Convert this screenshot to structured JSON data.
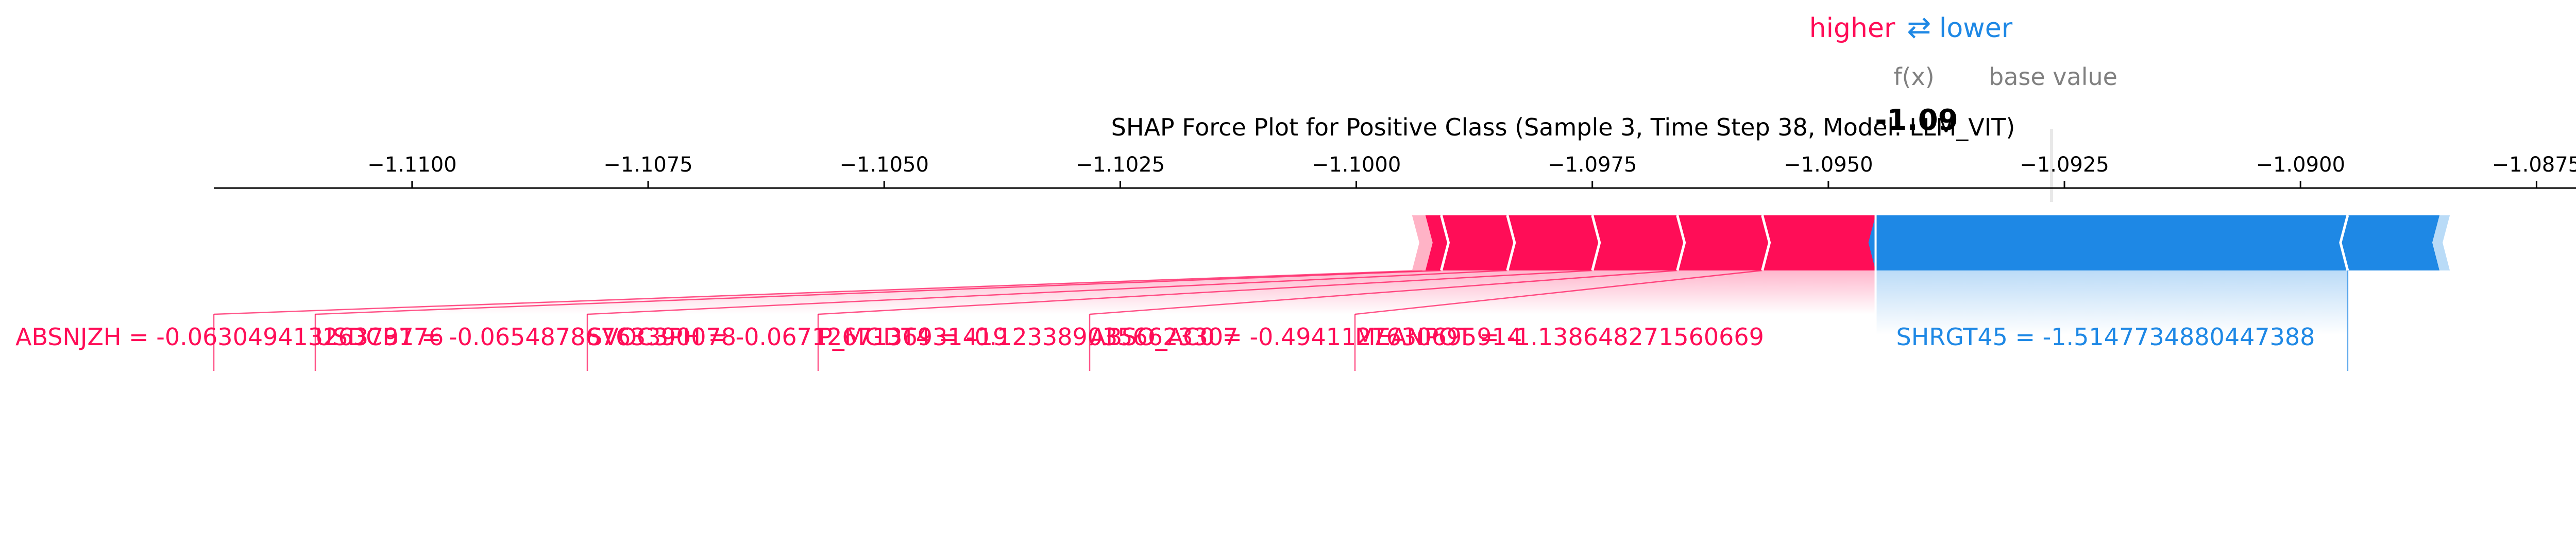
{
  "chart_data": {
    "type": "force",
    "title": "SHAP Force Plot for Positive Class (Sample 3, Time Step 38, Model: LLM_VIT)",
    "legend": {
      "higher": "higher",
      "arrow": "⇄",
      "lower": "lower",
      "higher_color": "#ff0d57",
      "lower_color": "#1e88e5",
      "placement": "top-center"
    },
    "fx_label": "f(x)",
    "base_value_label": "base value",
    "output_value": -1.0945,
    "output_value_text": "-1.09",
    "base_value": -1.0931,
    "xlim": [
      -1.1121,
      -1.0867
    ],
    "ticks": [
      {
        "value": -1.11,
        "label": "−1.1100"
      },
      {
        "value": -1.1075,
        "label": "−1.1075"
      },
      {
        "value": -1.105,
        "label": "−1.1050"
      },
      {
        "value": -1.1025,
        "label": "−1.1025"
      },
      {
        "value": -1.1,
        "label": "−1.1000"
      },
      {
        "value": -1.0975,
        "label": "−1.0975"
      },
      {
        "value": -1.095,
        "label": "−1.0950"
      },
      {
        "value": -1.0925,
        "label": "−1.0925"
      },
      {
        "value": -1.09,
        "label": "−1.0900"
      },
      {
        "value": -1.0875,
        "label": "−1.0875"
      }
    ],
    "positive_features": [
      {
        "label": "ABSNJZH = -0.06304941326379776",
        "start": -1.0993,
        "end": -1.0991
      },
      {
        "label": "USDCB1 = -0.06548786763390078",
        "start": -1.0991,
        "end": -1.0984
      },
      {
        "label": "SVOC3PH = -0.0671267136931419",
        "start": -1.0984,
        "end": -1.0975
      },
      {
        "label": "P_MGDT4 = -0.1233890356623307",
        "start": -1.0975,
        "end": -1.0966
      },
      {
        "label": "ABSO_AC0 = -0.4941127630695914",
        "start": -1.0966,
        "end": -1.0957
      },
      {
        "label": "MEANPOT = -1.138648271560669",
        "start": -1.0957,
        "end": -1.0945
      }
    ],
    "negative_features": [
      {
        "label": "SHRGT45 = -1.5147734880447388",
        "start": -1.0945,
        "end": -1.0895
      },
      {
        "label": "",
        "start": -1.0895,
        "end": -1.0882
      }
    ]
  }
}
